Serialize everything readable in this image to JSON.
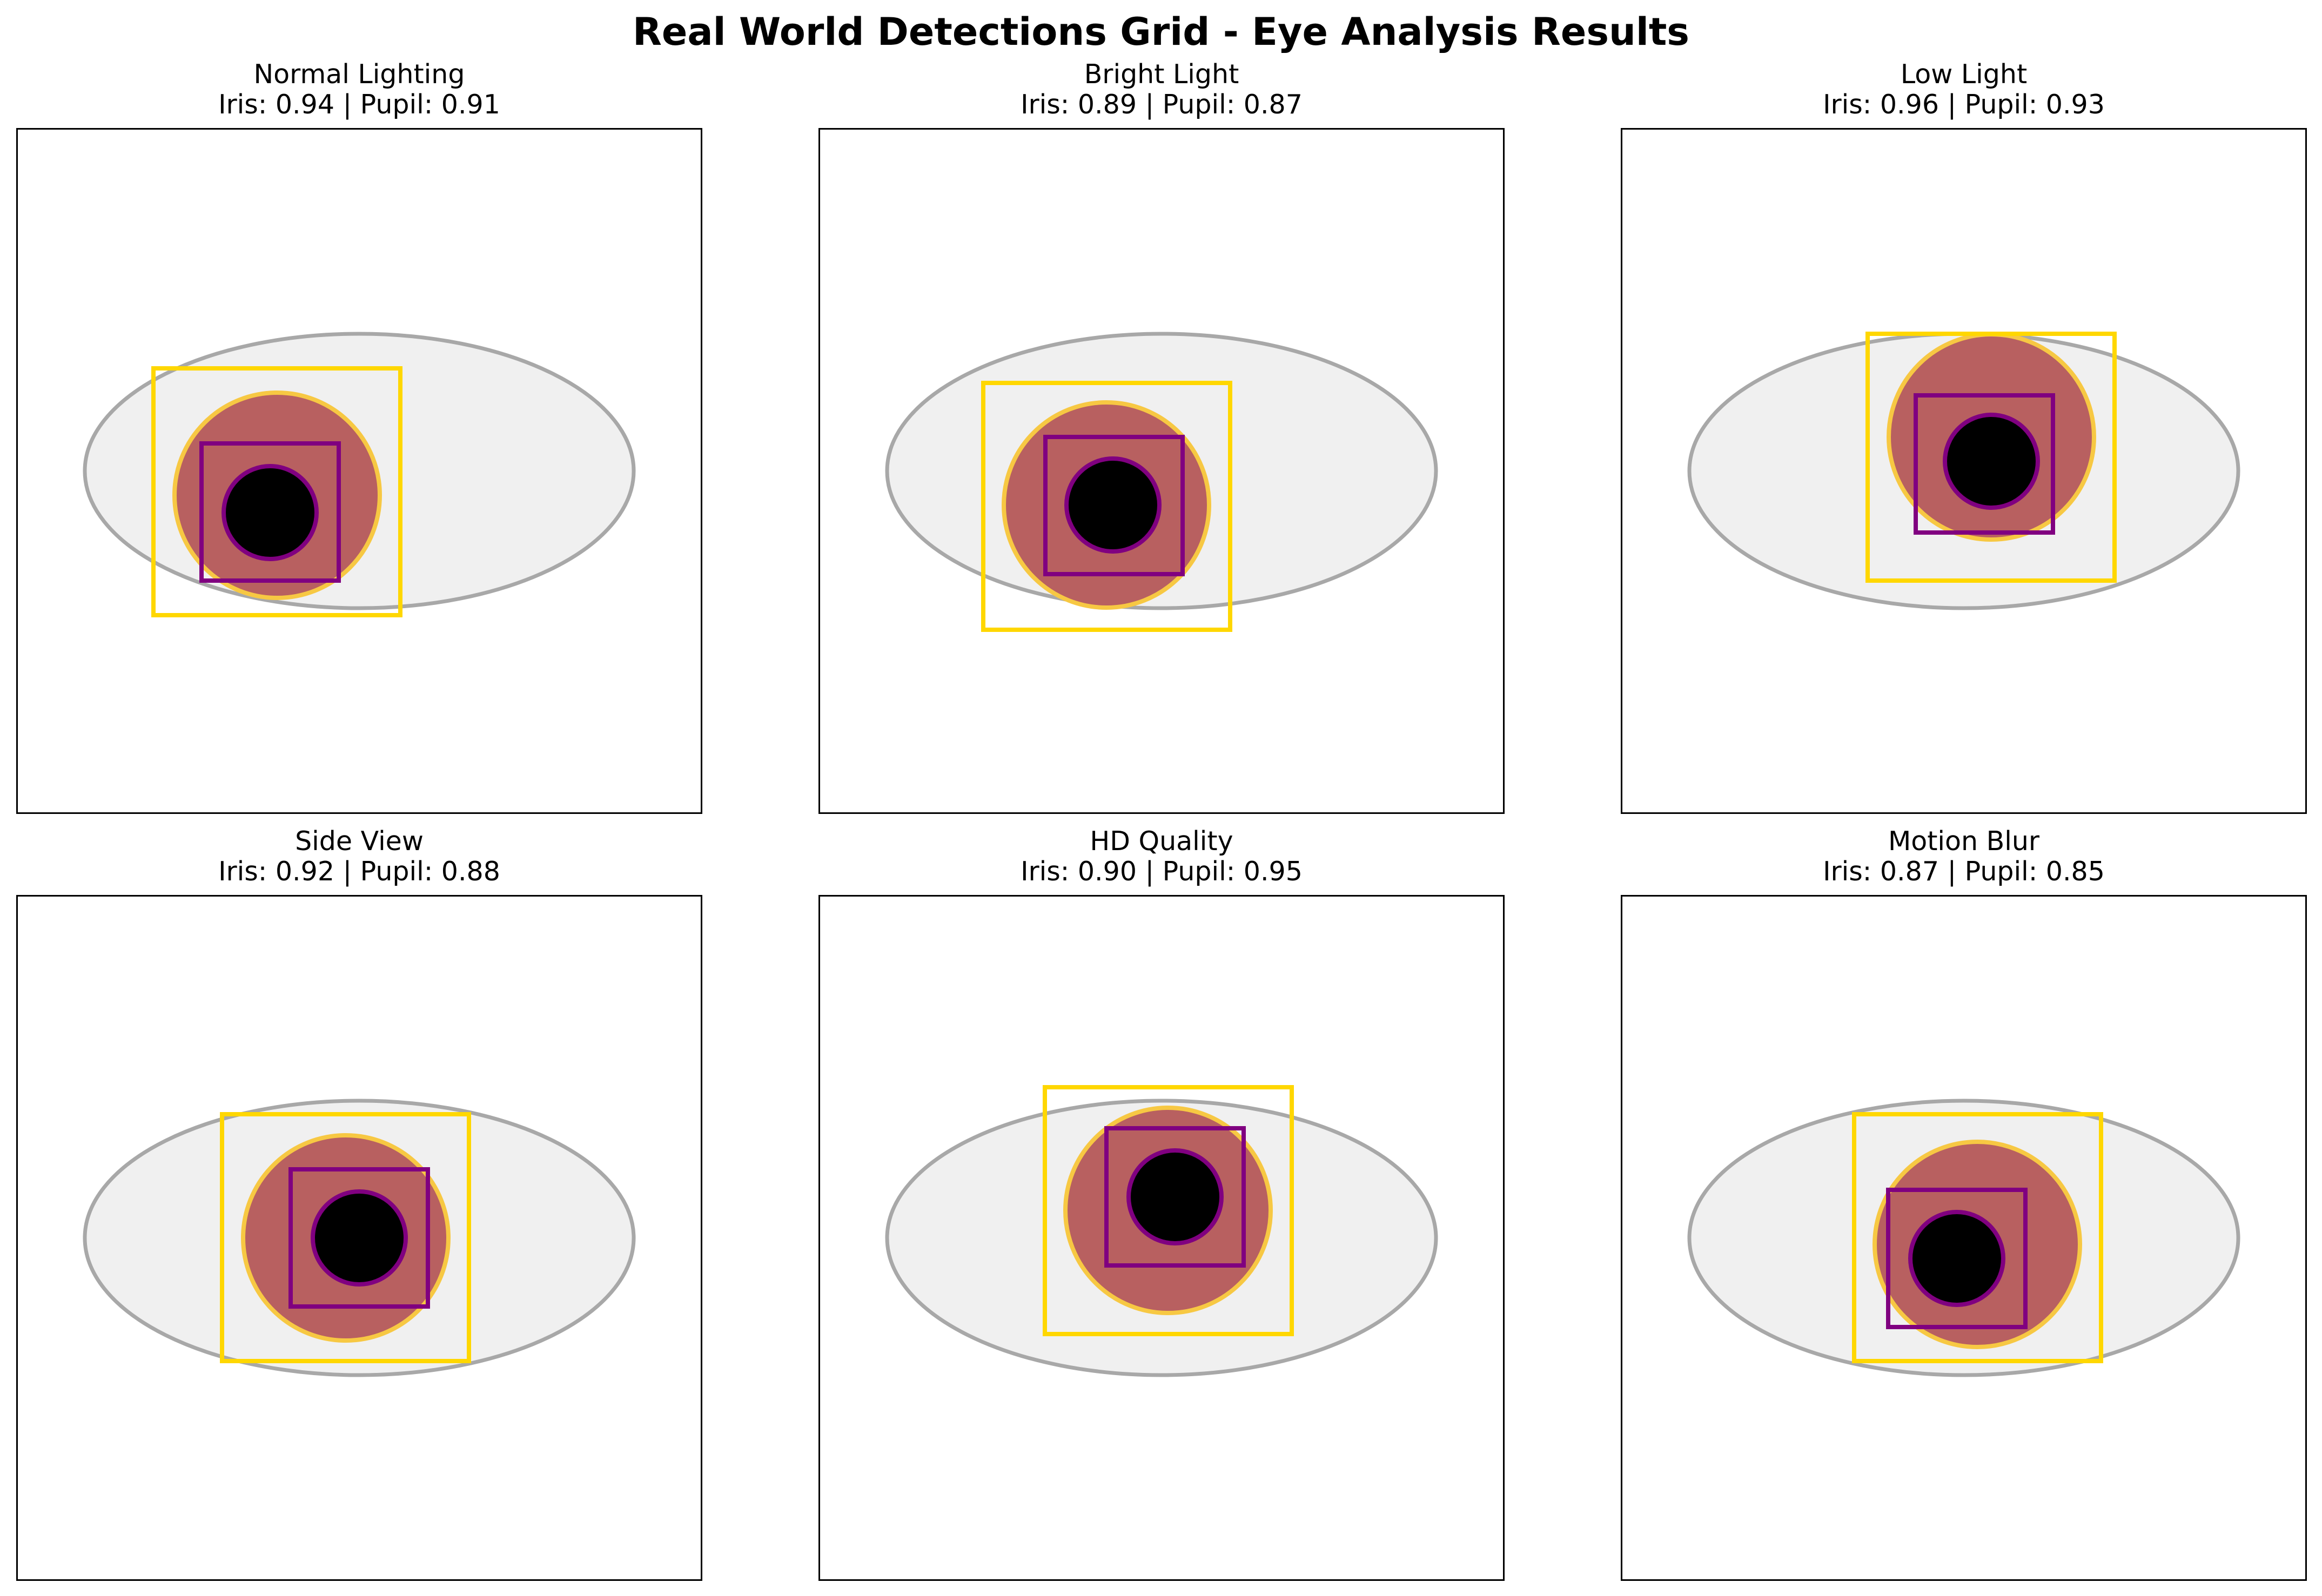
{
  "figure": {
    "title": "Real World Detections Grid - Eye Analysis Results"
  },
  "colors": {
    "sclera_fill": "#f0f0f0",
    "sclera_stroke": "#a8a8a8",
    "iris_fill": "#b86060",
    "iris_ring": "#f7c843",
    "pupil_fill": "#000000",
    "pupil_ring": "#800080",
    "iris_box": "#ffd700",
    "pupil_box": "#800080",
    "frame": "#000000"
  },
  "panels": [
    {
      "title": "Normal Lighting",
      "subtitle": "Iris: 0.94 | Pupil: 0.91"
    },
    {
      "title": "Bright Light",
      "subtitle": "Iris: 0.89 | Pupil: 0.87"
    },
    {
      "title": "Low Light",
      "subtitle": "Iris: 0.96 | Pupil: 0.93"
    },
    {
      "title": "Side View",
      "subtitle": "Iris: 0.92 | Pupil: 0.88"
    },
    {
      "title": "HD Quality",
      "subtitle": "Iris: 0.90 | Pupil: 0.95"
    },
    {
      "title": "Motion Blur",
      "subtitle": "Iris: 0.87 | Pupil: 0.85"
    }
  ]
}
